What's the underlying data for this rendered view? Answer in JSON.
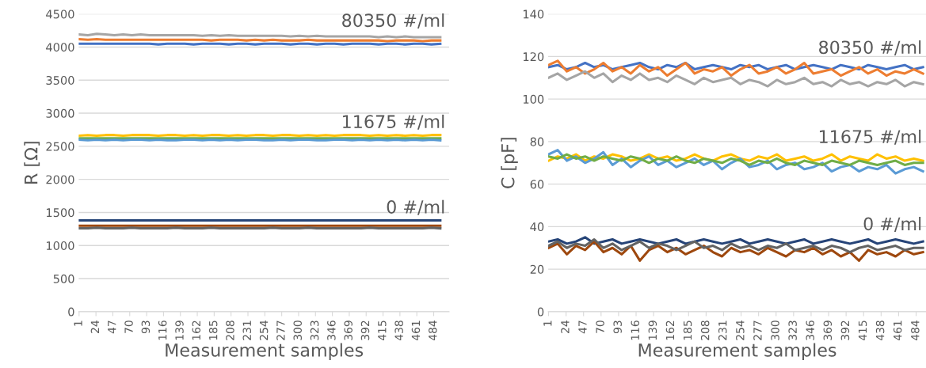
{
  "chart_data": [
    {
      "type": "line",
      "xlabel": "Measurement samples",
      "ylabel": "R [Ω]",
      "grid": "y",
      "x": [
        1,
        13,
        25,
        37,
        49,
        61,
        73,
        85,
        97,
        109,
        121,
        133,
        145,
        157,
        169,
        181,
        193,
        205,
        217,
        229,
        241,
        253,
        265,
        277,
        289,
        301,
        313,
        325,
        337,
        349,
        361,
        373,
        385,
        397,
        409,
        421,
        433,
        445,
        457,
        469,
        481,
        493
      ],
      "xlim": [
        0.5,
        505
      ],
      "xticks": [
        1,
        24,
        47,
        70,
        93,
        116,
        139,
        162,
        185,
        208,
        231,
        254,
        277,
        300,
        323,
        346,
        369,
        392,
        415,
        438,
        461,
        484
      ],
      "ylim": [
        0,
        4500
      ],
      "yticks": [
        0,
        500,
        1000,
        1500,
        2000,
        2500,
        3000,
        3500,
        4000,
        4500
      ],
      "series": [
        {
          "color": "#a5a5a5",
          "values": [
            4190,
            4180,
            4200,
            4190,
            4180,
            4190,
            4180,
            4190,
            4180,
            4180,
            4180,
            4180,
            4180,
            4180,
            4170,
            4180,
            4170,
            4180,
            4170,
            4170,
            4170,
            4170,
            4170,
            4170,
            4160,
            4170,
            4160,
            4170,
            4160,
            4160,
            4160,
            4160,
            4160,
            4160,
            4150,
            4160,
            4150,
            4160,
            4150,
            4150,
            4150,
            4150
          ]
        },
        {
          "color": "#ed7d31",
          "values": [
            4120,
            4110,
            4120,
            4110,
            4110,
            4110,
            4110,
            4110,
            4110,
            4110,
            4110,
            4110,
            4110,
            4110,
            4110,
            4100,
            4110,
            4110,
            4110,
            4100,
            4110,
            4100,
            4110,
            4100,
            4100,
            4100,
            4110,
            4100,
            4100,
            4100,
            4100,
            4100,
            4100,
            4100,
            4100,
            4090,
            4100,
            4100,
            4100,
            4090,
            4100,
            4100
          ]
        },
        {
          "color": "#4472c4",
          "values": [
            4050,
            4050,
            4050,
            4050,
            4050,
            4050,
            4050,
            4050,
            4050,
            4040,
            4050,
            4050,
            4050,
            4040,
            4050,
            4050,
            4050,
            4040,
            4050,
            4050,
            4040,
            4050,
            4050,
            4050,
            4040,
            4050,
            4050,
            4040,
            4050,
            4050,
            4040,
            4050,
            4050,
            4050,
            4040,
            4050,
            4050,
            4040,
            4050,
            4050,
            4040,
            4050
          ]
        },
        {
          "color": "#ffc000",
          "values": [
            2660,
            2670,
            2660,
            2670,
            2670,
            2660,
            2670,
            2670,
            2670,
            2660,
            2670,
            2670,
            2660,
            2670,
            2660,
            2670,
            2670,
            2660,
            2670,
            2660,
            2670,
            2670,
            2660,
            2670,
            2670,
            2660,
            2670,
            2660,
            2670,
            2660,
            2670,
            2670,
            2670,
            2660,
            2670,
            2660,
            2670,
            2660,
            2670,
            2660,
            2670,
            2670
          ]
        },
        {
          "color": "#70ad47",
          "values": [
            2620,
            2620,
            2620,
            2620,
            2620,
            2620,
            2620,
            2620,
            2620,
            2620,
            2620,
            2620,
            2620,
            2620,
            2620,
            2620,
            2620,
            2620,
            2620,
            2620,
            2620,
            2620,
            2620,
            2620,
            2620,
            2620,
            2620,
            2620,
            2620,
            2620,
            2620,
            2620,
            2620,
            2620,
            2620,
            2620,
            2620,
            2620,
            2620,
            2620,
            2620,
            2620
          ]
        },
        {
          "color": "#5b9bd5",
          "values": [
            2600,
            2590,
            2600,
            2590,
            2600,
            2590,
            2600,
            2600,
            2590,
            2600,
            2590,
            2590,
            2600,
            2600,
            2590,
            2600,
            2590,
            2600,
            2590,
            2600,
            2600,
            2590,
            2590,
            2600,
            2590,
            2600,
            2600,
            2590,
            2590,
            2600,
            2600,
            2590,
            2600,
            2590,
            2600,
            2590,
            2600,
            2590,
            2600,
            2590,
            2600,
            2590
          ]
        },
        {
          "color": "#264478",
          "values": [
            1380,
            1380,
            1380,
            1380,
            1380,
            1380,
            1380,
            1380,
            1380,
            1380,
            1380,
            1380,
            1380,
            1380,
            1380,
            1380,
            1380,
            1380,
            1380,
            1380,
            1380,
            1380,
            1380,
            1380,
            1380,
            1380,
            1380,
            1380,
            1380,
            1380,
            1380,
            1380,
            1380,
            1380,
            1380,
            1380,
            1380,
            1380,
            1380,
            1380,
            1380,
            1380
          ]
        },
        {
          "color": "#9e480e",
          "values": [
            1300,
            1300,
            1300,
            1300,
            1300,
            1300,
            1300,
            1300,
            1300,
            1300,
            1300,
            1300,
            1300,
            1300,
            1300,
            1300,
            1300,
            1300,
            1300,
            1300,
            1300,
            1300,
            1300,
            1300,
            1300,
            1300,
            1300,
            1300,
            1300,
            1300,
            1300,
            1300,
            1300,
            1300,
            1300,
            1300,
            1300,
            1300,
            1300,
            1300,
            1300,
            1300
          ]
        },
        {
          "color": "#636363",
          "values": [
            1260,
            1260,
            1270,
            1260,
            1260,
            1260,
            1270,
            1260,
            1260,
            1260,
            1260,
            1270,
            1260,
            1260,
            1260,
            1270,
            1260,
            1260,
            1260,
            1260,
            1260,
            1260,
            1270,
            1260,
            1260,
            1260,
            1270,
            1260,
            1260,
            1260,
            1260,
            1260,
            1260,
            1270,
            1260,
            1260,
            1260,
            1260,
            1260,
            1260,
            1270,
            1260
          ]
        }
      ],
      "annotations": [
        "80350 #/ml",
        "11675 #/ml",
        "0 #/ml"
      ]
    },
    {
      "type": "line",
      "xlabel": "Measurement samples",
      "ylabel": "C [pF]",
      "grid": "y",
      "x": [
        1,
        13,
        25,
        37,
        49,
        61,
        73,
        85,
        97,
        109,
        121,
        133,
        145,
        157,
        169,
        181,
        193,
        205,
        217,
        229,
        241,
        253,
        265,
        277,
        289,
        301,
        313,
        325,
        337,
        349,
        361,
        373,
        385,
        397,
        409,
        421,
        433,
        445,
        457,
        469,
        481,
        493
      ],
      "xlim": [
        0.5,
        497
      ],
      "xticks": [
        1,
        24,
        47,
        70,
        93,
        116,
        139,
        162,
        185,
        208,
        231,
        254,
        277,
        300,
        323,
        346,
        369,
        392,
        415,
        438,
        461,
        484
      ],
      "ylim": [
        0,
        140
      ],
      "yticks": [
        0,
        20,
        40,
        60,
        80,
        100,
        120,
        140
      ],
      "series": [
        {
          "color": "#4472c4",
          "values": [
            115,
            116,
            114,
            115,
            117,
            115,
            116,
            114,
            115,
            116,
            117,
            115,
            114,
            116,
            115,
            117,
            114,
            115,
            116,
            115,
            114,
            116,
            115,
            116,
            114,
            115,
            116,
            114,
            115,
            116,
            115,
            114,
            116,
            115,
            114,
            116,
            115,
            114,
            115,
            116,
            114,
            115
          ]
        },
        {
          "color": "#ed7d31",
          "values": [
            116,
            118,
            113,
            115,
            112,
            114,
            117,
            113,
            115,
            112,
            116,
            113,
            115,
            111,
            114,
            117,
            112,
            114,
            113,
            115,
            111,
            114,
            116,
            112,
            113,
            115,
            112,
            114,
            117,
            112,
            113,
            114,
            111,
            113,
            115,
            112,
            114,
            111,
            113,
            112,
            114,
            112
          ]
        },
        {
          "color": "#a5a5a5",
          "values": [
            110,
            112,
            109,
            111,
            113,
            110,
            112,
            108,
            111,
            109,
            112,
            109,
            110,
            108,
            111,
            109,
            107,
            110,
            108,
            109,
            110,
            107,
            109,
            108,
            106,
            109,
            107,
            108,
            110,
            107,
            108,
            106,
            109,
            107,
            108,
            106,
            108,
            107,
            109,
            106,
            108,
            107
          ]
        },
        {
          "color": "#ffc000",
          "values": [
            71,
            73,
            72,
            74,
            71,
            73,
            72,
            74,
            73,
            71,
            72,
            74,
            72,
            73,
            71,
            72,
            74,
            72,
            71,
            73,
            74,
            72,
            71,
            73,
            72,
            74,
            71,
            72,
            73,
            71,
            72,
            74,
            71,
            73,
            72,
            71,
            74,
            72,
            73,
            71,
            72,
            71
          ]
        },
        {
          "color": "#5b9bd5",
          "values": [
            74,
            76,
            71,
            73,
            70,
            72,
            75,
            69,
            72,
            68,
            71,
            73,
            69,
            71,
            68,
            70,
            72,
            69,
            71,
            67,
            70,
            72,
            68,
            69,
            71,
            67,
            69,
            70,
            67,
            68,
            70,
            66,
            68,
            69,
            66,
            68,
            67,
            69,
            65,
            67,
            68,
            66
          ]
        },
        {
          "color": "#70ad47",
          "values": [
            73,
            72,
            74,
            72,
            73,
            71,
            73,
            72,
            71,
            73,
            72,
            70,
            72,
            71,
            73,
            71,
            70,
            72,
            71,
            70,
            72,
            71,
            69,
            71,
            70,
            72,
            70,
            69,
            71,
            70,
            69,
            71,
            70,
            69,
            71,
            70,
            69,
            70,
            71,
            69,
            70,
            70
          ]
        },
        {
          "color": "#264478",
          "values": [
            33,
            34,
            32,
            33,
            35,
            32,
            33,
            34,
            32,
            33,
            34,
            33,
            32,
            33,
            34,
            32,
            33,
            34,
            33,
            32,
            33,
            34,
            32,
            33,
            34,
            33,
            32,
            33,
            34,
            32,
            33,
            34,
            33,
            32,
            33,
            34,
            32,
            33,
            34,
            33,
            32,
            33
          ]
        },
        {
          "color": "#9e480e",
          "values": [
            30,
            32,
            27,
            31,
            29,
            33,
            28,
            30,
            27,
            31,
            24,
            29,
            31,
            28,
            30,
            27,
            29,
            31,
            28,
            26,
            30,
            28,
            29,
            27,
            30,
            28,
            26,
            29,
            28,
            30,
            27,
            29,
            26,
            28,
            24,
            29,
            27,
            28,
            26,
            29,
            27,
            28
          ]
        },
        {
          "color": "#636363",
          "values": [
            31,
            33,
            30,
            32,
            31,
            34,
            30,
            32,
            29,
            31,
            33,
            30,
            32,
            31,
            29,
            31,
            33,
            30,
            31,
            29,
            32,
            30,
            31,
            29,
            31,
            30,
            32,
            29,
            30,
            31,
            29,
            31,
            30,
            28,
            30,
            31,
            29,
            30,
            31,
            29,
            30,
            30
          ]
        }
      ],
      "annotations": [
        "80350 #/ml",
        "11675 #/ml",
        "0 #/ml"
      ]
    }
  ]
}
